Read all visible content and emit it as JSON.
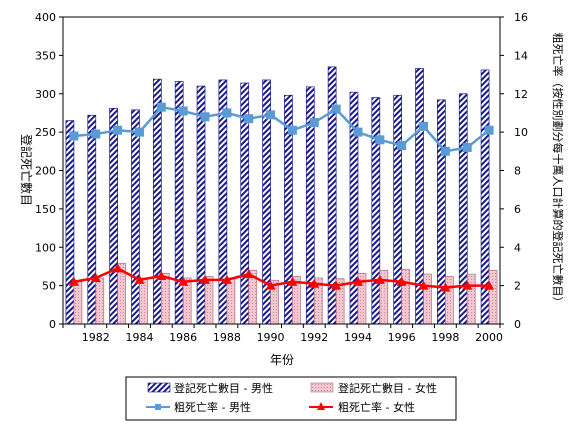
{
  "chart_data": {
    "type": "bar",
    "title": "",
    "xlabel": "年份",
    "ylabel_left": "登記死亡數目",
    "ylabel_right": "粗死亡率（按性別劃分每十萬人口計算的登記死亡數目）",
    "ylim_left": [
      0,
      400
    ],
    "ylim_right": [
      0,
      16
    ],
    "yticks_left": [
      "0",
      "50",
      "100",
      "150",
      "200",
      "250",
      "300",
      "350",
      "400"
    ],
    "yticks_right": [
      "0",
      "2",
      "4",
      "6",
      "8",
      "10",
      "12",
      "14",
      "16"
    ],
    "x": [
      1981,
      1982,
      1983,
      1984,
      1985,
      1986,
      1987,
      1988,
      1989,
      1990,
      1991,
      1992,
      1993,
      1994,
      1995,
      1996,
      1997,
      1998,
      1999,
      2000
    ],
    "xtick_labels": [
      "1982",
      "1984",
      "1986",
      "1988",
      "1990",
      "1992",
      "1994",
      "1996",
      "1998",
      "2000"
    ],
    "grid": false,
    "legend_position": "bottom",
    "series": [
      {
        "name": "登記死亡數目 - 男性",
        "type": "bar",
        "axis": "left",
        "color": "#1a1a8c",
        "values": [
          265,
          272,
          281,
          279,
          319,
          316,
          310,
          318,
          314,
          318,
          298,
          309,
          335,
          302,
          295,
          298,
          333,
          292,
          300,
          331
        ]
      },
      {
        "name": "登記死亡數目 - 女性",
        "type": "bar",
        "axis": "left",
        "color": "#f4c6cf",
        "values": [
          55,
          60,
          79,
          60,
          66,
          60,
          62,
          60,
          70,
          57,
          62,
          60,
          59,
          66,
          70,
          71,
          65,
          62,
          65,
          70
        ]
      },
      {
        "name": "粗死亡率 - 男性",
        "type": "line",
        "axis": "right",
        "color": "#5b9bd5",
        "marker": "square",
        "values": [
          9.8,
          9.9,
          10.1,
          10.0,
          11.3,
          11.1,
          10.8,
          11.0,
          10.7,
          10.9,
          10.1,
          10.5,
          11.2,
          10.0,
          9.6,
          9.3,
          10.3,
          9.0,
          9.2,
          10.1
        ]
      },
      {
        "name": "粗死亡率 - 女性",
        "type": "line",
        "axis": "right",
        "color": "#ff0000",
        "marker": "triangle",
        "values": [
          2.2,
          2.4,
          2.9,
          2.3,
          2.5,
          2.2,
          2.3,
          2.3,
          2.6,
          2.0,
          2.2,
          2.1,
          2.0,
          2.2,
          2.3,
          2.2,
          2.0,
          1.9,
          2.0,
          2.0
        ]
      }
    ]
  }
}
